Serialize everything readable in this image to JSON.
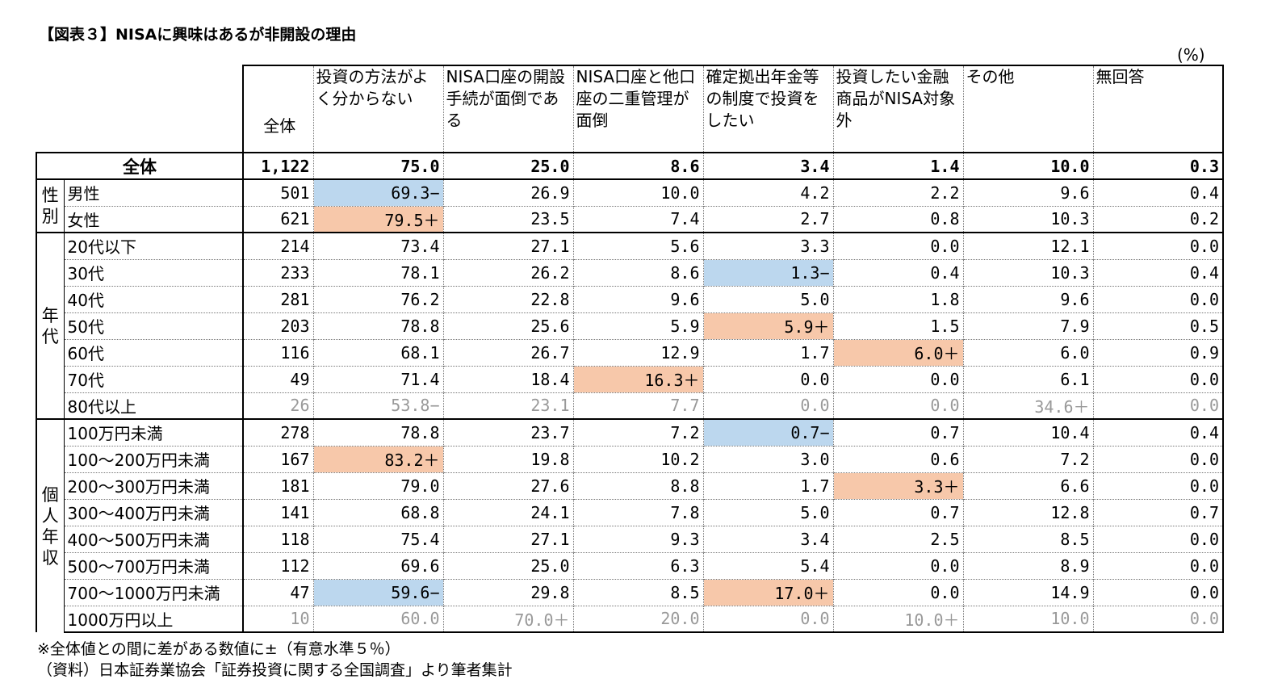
{
  "title": "【図表３】NISAに興味はあるが非開設の理由",
  "unit": "(%)",
  "chart_data": {
    "type": "table",
    "header_all": "全体",
    "columns": [
      "投資の方法がよく分からない",
      "NISA口座の開設手続が面倒である",
      "NISA口座と他口座の二重管理が面倒",
      "確定拠出年金等の制度で投資をしたい",
      "投資したい金融商品がNISA対象外",
      "その他",
      "無回答"
    ],
    "total": {
      "label": "全体",
      "n": "1,122",
      "values": [
        "75.0",
        "25.0",
        "8.6",
        "3.4",
        "1.4",
        "10.0",
        "0.3"
      ]
    },
    "groups": [
      {
        "name": "性別",
        "chars": [
          "性",
          "別"
        ],
        "rows": [
          {
            "label": "男性",
            "n": "501",
            "values": [
              "69.3−",
              "26.9",
              "10.0",
              "4.2",
              "2.2",
              "9.6",
              "0.4"
            ],
            "marks": [
              "lo",
              "",
              "",
              "",
              "",
              "",
              ""
            ],
            "grey": false
          },
          {
            "label": "女性",
            "n": "621",
            "values": [
              "79.5＋",
              "23.5",
              "7.4",
              "2.7",
              "0.8",
              "10.3",
              "0.2"
            ],
            "marks": [
              "hi",
              "",
              "",
              "",
              "",
              "",
              ""
            ],
            "grey": false
          }
        ]
      },
      {
        "name": "年代",
        "chars": [
          "年",
          "代"
        ],
        "rows": [
          {
            "label": "20代以下",
            "n": "214",
            "values": [
              "73.4",
              "27.1",
              "5.6",
              "3.3",
              "0.0",
              "12.1",
              "0.0"
            ],
            "marks": [
              "",
              "",
              "",
              "",
              "",
              "",
              ""
            ],
            "grey": false
          },
          {
            "label": "30代",
            "n": "233",
            "values": [
              "78.1",
              "26.2",
              "8.6",
              "1.3−",
              "0.4",
              "10.3",
              "0.4"
            ],
            "marks": [
              "",
              "",
              "",
              "lo",
              "",
              "",
              ""
            ],
            "grey": false
          },
          {
            "label": "40代",
            "n": "281",
            "values": [
              "76.2",
              "22.8",
              "9.6",
              "5.0",
              "1.8",
              "9.6",
              "0.0"
            ],
            "marks": [
              "",
              "",
              "",
              "",
              "",
              "",
              ""
            ],
            "grey": false
          },
          {
            "label": "50代",
            "n": "203",
            "values": [
              "78.8",
              "25.6",
              "5.9",
              "5.9＋",
              "1.5",
              "7.9",
              "0.5"
            ],
            "marks": [
              "",
              "",
              "",
              "hi",
              "",
              "",
              ""
            ],
            "grey": false
          },
          {
            "label": "60代",
            "n": "116",
            "values": [
              "68.1",
              "26.7",
              "12.9",
              "1.7",
              "6.0＋",
              "6.0",
              "0.9"
            ],
            "marks": [
              "",
              "",
              "",
              "",
              "hi",
              "",
              ""
            ],
            "grey": false
          },
          {
            "label": "70代",
            "n": "49",
            "values": [
              "71.4",
              "18.4",
              "16.3＋",
              "0.0",
              "0.0",
              "6.1",
              "0.0"
            ],
            "marks": [
              "",
              "",
              "hi",
              "",
              "",
              "",
              ""
            ],
            "grey": false
          },
          {
            "label": "80代以上",
            "n": "26",
            "values": [
              "53.8−",
              "23.1",
              "7.7",
              "0.0",
              "0.0",
              "34.6＋",
              "0.0"
            ],
            "marks": [
              "",
              "",
              "",
              "",
              "",
              "",
              ""
            ],
            "grey": true
          }
        ]
      },
      {
        "name": "個人年収",
        "chars": [
          "個",
          "人",
          "年",
          "収"
        ],
        "rows": [
          {
            "label": "100万円未満",
            "n": "278",
            "values": [
              "78.8",
              "23.7",
              "7.2",
              "0.7−",
              "0.7",
              "10.4",
              "0.4"
            ],
            "marks": [
              "",
              "",
              "",
              "lo",
              "",
              "",
              ""
            ],
            "grey": false
          },
          {
            "label": "100～200万円未満",
            "n": "167",
            "values": [
              "83.2＋",
              "19.8",
              "10.2",
              "3.0",
              "0.6",
              "7.2",
              "0.0"
            ],
            "marks": [
              "hi",
              "",
              "",
              "",
              "",
              "",
              ""
            ],
            "grey": false
          },
          {
            "label": "200～300万円未満",
            "n": "181",
            "values": [
              "79.0",
              "27.6",
              "8.8",
              "1.7",
              "3.3＋",
              "6.6",
              "0.0"
            ],
            "marks": [
              "",
              "",
              "",
              "",
              "hi",
              "",
              ""
            ],
            "grey": false
          },
          {
            "label": "300～400万円未満",
            "n": "141",
            "values": [
              "68.8",
              "24.1",
              "7.8",
              "5.0",
              "0.7",
              "12.8",
              "0.7"
            ],
            "marks": [
              "",
              "",
              "",
              "",
              "",
              "",
              ""
            ],
            "grey": false
          },
          {
            "label": "400～500万円未満",
            "n": "118",
            "values": [
              "75.4",
              "27.1",
              "9.3",
              "3.4",
              "2.5",
              "8.5",
              "0.0"
            ],
            "marks": [
              "",
              "",
              "",
              "",
              "",
              "",
              ""
            ],
            "grey": false
          },
          {
            "label": "500～700万円未満",
            "n": "112",
            "values": [
              "69.6",
              "25.0",
              "6.3",
              "5.4",
              "0.0",
              "8.9",
              "0.0"
            ],
            "marks": [
              "",
              "",
              "",
              "",
              "",
              "",
              ""
            ],
            "grey": false
          },
          {
            "label": "700～1000万円未満",
            "n": "47",
            "values": [
              "59.6−",
              "29.8",
              "8.5",
              "17.0＋",
              "0.0",
              "14.9",
              "0.0"
            ],
            "marks": [
              "lo",
              "",
              "",
              "hi",
              "",
              "",
              ""
            ],
            "grey": false
          },
          {
            "label": "1000万円以上",
            "n": "10",
            "values": [
              "60.0",
              "70.0＋",
              "20.0",
              "0.0",
              "10.0＋",
              "10.0",
              "0.0"
            ],
            "marks": [
              "",
              "",
              "",
              "",
              "",
              "",
              ""
            ],
            "grey": true
          }
        ]
      }
    ],
    "colors": {
      "significant_low": "#bcd7ee",
      "significant_high": "#f7c8aa",
      "small_sample_text": "#999999"
    }
  },
  "notes": [
    "※全体値との間に差がある数値に±（有意水準５％）",
    "（資料）日本証券業協会「証券投資に関する全国調査」より筆者集計"
  ]
}
